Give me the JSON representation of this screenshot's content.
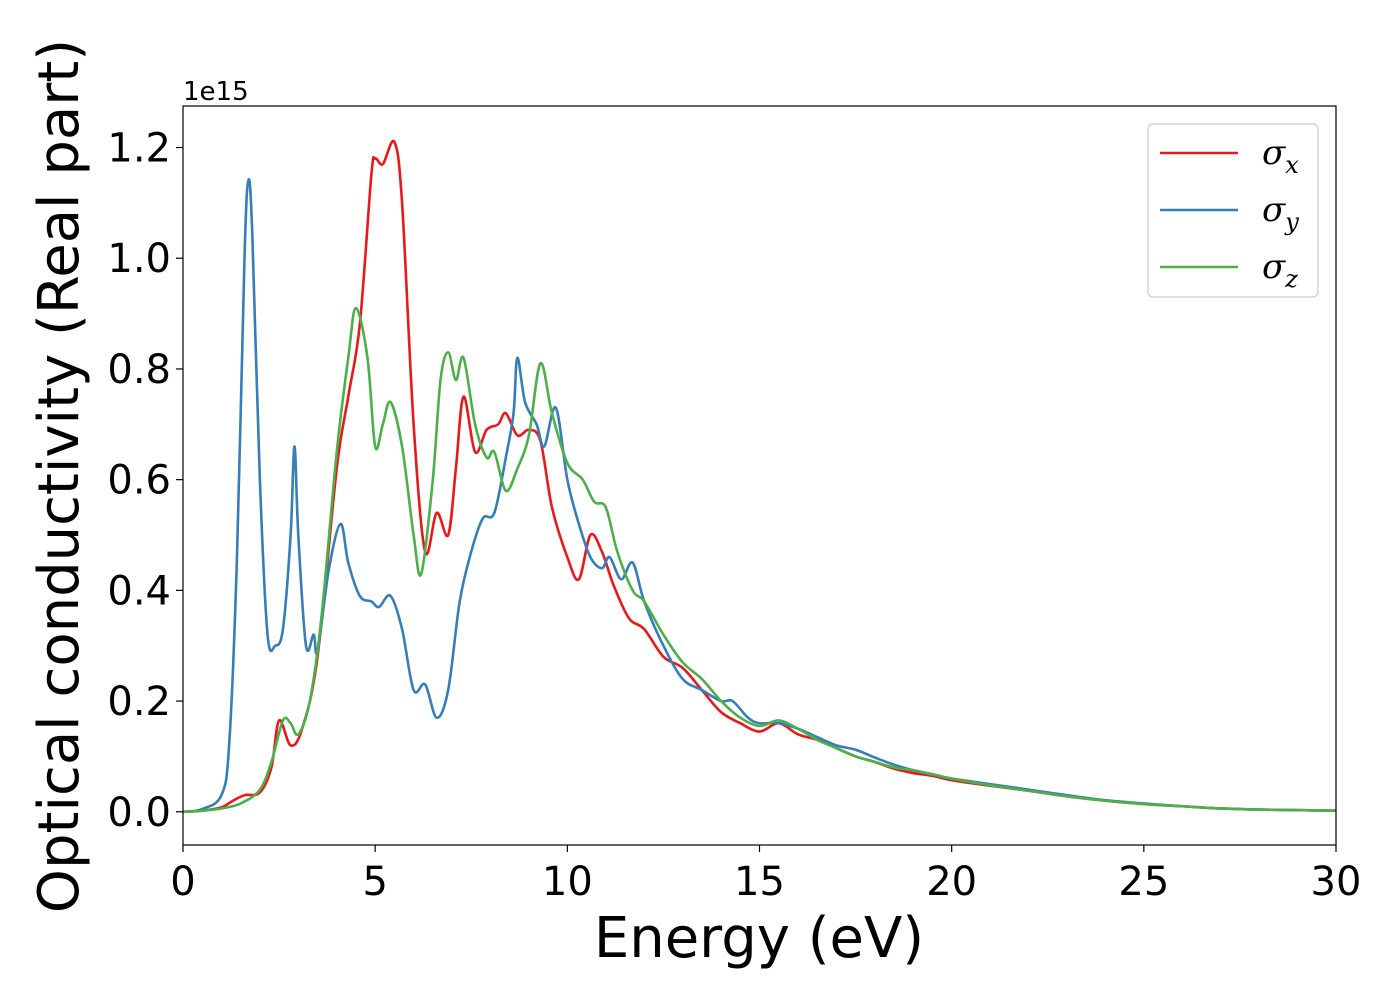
{
  "chart_data": {
    "type": "line",
    "xlabel": "Energy (eV)",
    "ylabel": "Optical conductivity (Real part)",
    "y_offset_label": "1e15",
    "xlim": [
      0,
      30
    ],
    "ylim": [
      -0.06,
      1.275
    ],
    "x_ticks": [
      0,
      5,
      10,
      15,
      20,
      25,
      30
    ],
    "x_tick_labels": [
      "0",
      "5",
      "10",
      "15",
      "20",
      "25",
      "30"
    ],
    "y_ticks": [
      0.0,
      0.2,
      0.4,
      0.6,
      0.8,
      1.0,
      1.2
    ],
    "y_tick_labels": [
      "0.0",
      "0.2",
      "0.4",
      "0.6",
      "0.8",
      "1.0",
      "1.2"
    ],
    "grid": false,
    "legend_position": "top-right",
    "series": [
      {
        "name": "σx",
        "legend_symbol": "σ",
        "legend_subscript": "x",
        "color": "#e41a1c",
        "points": [
          [
            0,
            0.0
          ],
          [
            0.5,
            0.002
          ],
          [
            1.0,
            0.008
          ],
          [
            1.3,
            0.02
          ],
          [
            1.6,
            0.03
          ],
          [
            2.0,
            0.035
          ],
          [
            2.3,
            0.08
          ],
          [
            2.5,
            0.165
          ],
          [
            2.8,
            0.12
          ],
          [
            3.1,
            0.15
          ],
          [
            3.5,
            0.28
          ],
          [
            4.0,
            0.62
          ],
          [
            4.3,
            0.75
          ],
          [
            4.6,
            0.88
          ],
          [
            4.9,
            1.15
          ],
          [
            5.0,
            1.18
          ],
          [
            5.2,
            1.17
          ],
          [
            5.5,
            1.21
          ],
          [
            5.7,
            1.1
          ],
          [
            6.0,
            0.7
          ],
          [
            6.3,
            0.47
          ],
          [
            6.6,
            0.54
          ],
          [
            6.9,
            0.5
          ],
          [
            7.1,
            0.62
          ],
          [
            7.3,
            0.75
          ],
          [
            7.6,
            0.65
          ],
          [
            7.9,
            0.69
          ],
          [
            8.2,
            0.7
          ],
          [
            8.4,
            0.72
          ],
          [
            8.7,
            0.68
          ],
          [
            9.0,
            0.69
          ],
          [
            9.3,
            0.67
          ],
          [
            9.6,
            0.55
          ],
          [
            10.0,
            0.46
          ],
          [
            10.3,
            0.42
          ],
          [
            10.6,
            0.5
          ],
          [
            10.9,
            0.47
          ],
          [
            11.2,
            0.41
          ],
          [
            11.6,
            0.35
          ],
          [
            12.0,
            0.33
          ],
          [
            12.5,
            0.28
          ],
          [
            13.0,
            0.26
          ],
          [
            13.5,
            0.22
          ],
          [
            14.0,
            0.18
          ],
          [
            14.5,
            0.16
          ],
          [
            15.0,
            0.145
          ],
          [
            15.5,
            0.16
          ],
          [
            16.0,
            0.14
          ],
          [
            16.5,
            0.13
          ],
          [
            17.0,
            0.115
          ],
          [
            17.5,
            0.1
          ],
          [
            18.0,
            0.09
          ],
          [
            18.5,
            0.078
          ],
          [
            19.0,
            0.07
          ],
          [
            19.5,
            0.065
          ],
          [
            20.0,
            0.057
          ],
          [
            21.0,
            0.047
          ],
          [
            22.0,
            0.038
          ],
          [
            23.0,
            0.028
          ],
          [
            24.0,
            0.02
          ],
          [
            25.0,
            0.014
          ],
          [
            26.0,
            0.01
          ],
          [
            27.0,
            0.006
          ],
          [
            28.0,
            0.004
          ],
          [
            29.0,
            0.003
          ],
          [
            30.0,
            0.002
          ]
        ]
      },
      {
        "name": "σy",
        "legend_symbol": "σ",
        "legend_subscript": "y",
        "color": "#377eb8",
        "points": [
          [
            0,
            0.0
          ],
          [
            0.5,
            0.005
          ],
          [
            1.0,
            0.03
          ],
          [
            1.2,
            0.12
          ],
          [
            1.4,
            0.45
          ],
          [
            1.6,
            1.0
          ],
          [
            1.7,
            1.14
          ],
          [
            1.8,
            1.05
          ],
          [
            2.0,
            0.6
          ],
          [
            2.2,
            0.32
          ],
          [
            2.4,
            0.3
          ],
          [
            2.6,
            0.33
          ],
          [
            2.8,
            0.5
          ],
          [
            2.9,
            0.66
          ],
          [
            3.0,
            0.5
          ],
          [
            3.2,
            0.3
          ],
          [
            3.4,
            0.32
          ],
          [
            3.5,
            0.29
          ],
          [
            3.8,
            0.44
          ],
          [
            4.1,
            0.52
          ],
          [
            4.3,
            0.45
          ],
          [
            4.6,
            0.39
          ],
          [
            4.9,
            0.38
          ],
          [
            5.1,
            0.37
          ],
          [
            5.4,
            0.39
          ],
          [
            5.7,
            0.33
          ],
          [
            6.0,
            0.22
          ],
          [
            6.3,
            0.23
          ],
          [
            6.6,
            0.17
          ],
          [
            6.9,
            0.22
          ],
          [
            7.2,
            0.38
          ],
          [
            7.5,
            0.47
          ],
          [
            7.8,
            0.53
          ],
          [
            8.1,
            0.54
          ],
          [
            8.4,
            0.64
          ],
          [
            8.6,
            0.72
          ],
          [
            8.7,
            0.82
          ],
          [
            8.9,
            0.74
          ],
          [
            9.2,
            0.7
          ],
          [
            9.4,
            0.66
          ],
          [
            9.7,
            0.73
          ],
          [
            10.0,
            0.6
          ],
          [
            10.3,
            0.52
          ],
          [
            10.6,
            0.46
          ],
          [
            10.9,
            0.44
          ],
          [
            11.1,
            0.46
          ],
          [
            11.4,
            0.42
          ],
          [
            11.7,
            0.45
          ],
          [
            12.0,
            0.38
          ],
          [
            12.5,
            0.3
          ],
          [
            13.0,
            0.24
          ],
          [
            13.5,
            0.22
          ],
          [
            14.0,
            0.2
          ],
          [
            14.3,
            0.2
          ],
          [
            14.7,
            0.17
          ],
          [
            15.0,
            0.16
          ],
          [
            15.5,
            0.16
          ],
          [
            16.0,
            0.15
          ],
          [
            16.5,
            0.135
          ],
          [
            17.0,
            0.12
          ],
          [
            17.5,
            0.112
          ],
          [
            18.0,
            0.098
          ],
          [
            18.5,
            0.085
          ],
          [
            19.0,
            0.075
          ],
          [
            19.5,
            0.067
          ],
          [
            20.0,
            0.06
          ],
          [
            21.0,
            0.05
          ],
          [
            22.0,
            0.04
          ],
          [
            23.0,
            0.03
          ],
          [
            24.0,
            0.021
          ],
          [
            25.0,
            0.015
          ],
          [
            26.0,
            0.01
          ],
          [
            27.0,
            0.006
          ],
          [
            28.0,
            0.004
          ],
          [
            29.0,
            0.003
          ],
          [
            30.0,
            0.002
          ]
        ]
      },
      {
        "name": "σz",
        "legend_symbol": "σ",
        "legend_subscript": "z",
        "color": "#4daf4a",
        "points": [
          [
            0,
            0.0
          ],
          [
            0.5,
            0.002
          ],
          [
            1.0,
            0.006
          ],
          [
            1.5,
            0.015
          ],
          [
            2.0,
            0.04
          ],
          [
            2.3,
            0.09
          ],
          [
            2.6,
            0.165
          ],
          [
            2.8,
            0.16
          ],
          [
            3.0,
            0.14
          ],
          [
            3.3,
            0.2
          ],
          [
            3.6,
            0.35
          ],
          [
            4.0,
            0.65
          ],
          [
            4.3,
            0.82
          ],
          [
            4.5,
            0.91
          ],
          [
            4.8,
            0.82
          ],
          [
            5.0,
            0.66
          ],
          [
            5.2,
            0.7
          ],
          [
            5.4,
            0.74
          ],
          [
            5.7,
            0.66
          ],
          [
            6.0,
            0.5
          ],
          [
            6.2,
            0.43
          ],
          [
            6.5,
            0.6
          ],
          [
            6.7,
            0.78
          ],
          [
            6.9,
            0.83
          ],
          [
            7.1,
            0.78
          ],
          [
            7.3,
            0.82
          ],
          [
            7.6,
            0.7
          ],
          [
            7.9,
            0.64
          ],
          [
            8.1,
            0.65
          ],
          [
            8.4,
            0.58
          ],
          [
            8.7,
            0.62
          ],
          [
            9.0,
            0.68
          ],
          [
            9.3,
            0.81
          ],
          [
            9.6,
            0.72
          ],
          [
            10.0,
            0.63
          ],
          [
            10.4,
            0.6
          ],
          [
            10.7,
            0.56
          ],
          [
            11.0,
            0.55
          ],
          [
            11.3,
            0.47
          ],
          [
            11.7,
            0.4
          ],
          [
            12.0,
            0.38
          ],
          [
            12.5,
            0.32
          ],
          [
            13.0,
            0.27
          ],
          [
            13.5,
            0.24
          ],
          [
            14.0,
            0.2
          ],
          [
            14.5,
            0.17
          ],
          [
            15.0,
            0.155
          ],
          [
            15.5,
            0.165
          ],
          [
            16.0,
            0.15
          ],
          [
            16.5,
            0.13
          ],
          [
            17.0,
            0.115
          ],
          [
            17.5,
            0.1
          ],
          [
            18.0,
            0.09
          ],
          [
            18.5,
            0.08
          ],
          [
            19.0,
            0.075
          ],
          [
            19.5,
            0.068
          ],
          [
            20.0,
            0.06
          ],
          [
            21.0,
            0.048
          ],
          [
            22.0,
            0.038
          ],
          [
            23.0,
            0.028
          ],
          [
            24.0,
            0.02
          ],
          [
            25.0,
            0.014
          ],
          [
            26.0,
            0.01
          ],
          [
            27.0,
            0.006
          ],
          [
            28.0,
            0.004
          ],
          [
            29.0,
            0.003
          ],
          [
            30.0,
            0.002
          ]
        ]
      }
    ]
  }
}
